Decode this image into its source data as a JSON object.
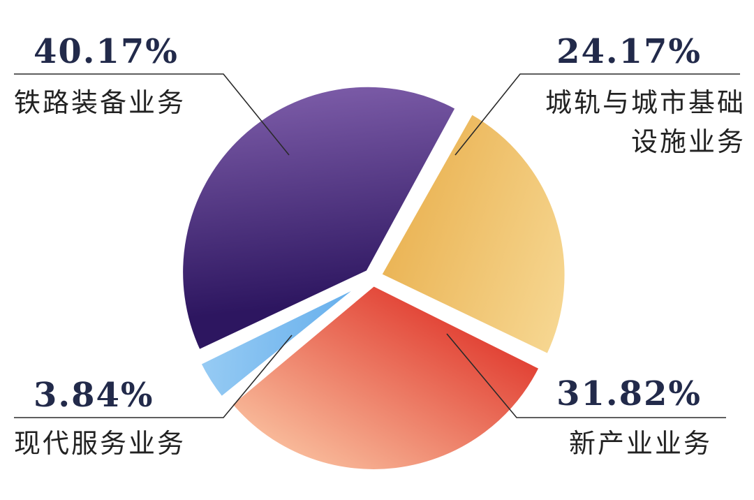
{
  "chart_data": {
    "type": "pie",
    "slices": [
      {
        "value": 24.17,
        "label_value": "24.17%",
        "label_lines": [
          "城轨与城市基础",
          "设施业务"
        ],
        "color_start": "#f6d690",
        "color_end": "#e9b04e"
      },
      {
        "value": 31.82,
        "label_value": "31.82%",
        "label_lines": [
          "新产业业务"
        ],
        "color_start": "#f8b898",
        "color_end": "#e03a2e"
      },
      {
        "value": 3.84,
        "label_value": "3.84%",
        "label_lines": [
          "现代服务业务"
        ],
        "color_start": "#9fd0f5",
        "color_end": "#5aa8ea"
      },
      {
        "value": 40.17,
        "label_value": "40.17%",
        "label_lines": [
          "铁路装备业务"
        ],
        "color_start": "#7a5aa6",
        "color_end": "#2d1660"
      }
    ]
  }
}
